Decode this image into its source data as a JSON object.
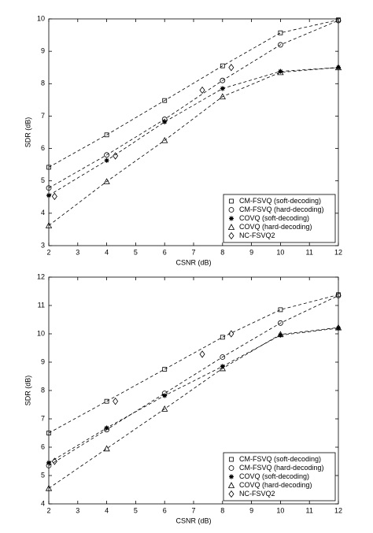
{
  "chart_data": [
    {
      "type": "line",
      "xlabel": "CSNR (dB)",
      "ylabel": "SDR (dB)",
      "xlim": [
        2,
        12
      ],
      "ylim": [
        3,
        10
      ],
      "xticks": [
        2,
        3,
        4,
        5,
        6,
        7,
        8,
        9,
        10,
        11,
        12
      ],
      "yticks": [
        3,
        4,
        5,
        6,
        7,
        8,
        9,
        10
      ],
      "legend": "lower right",
      "series": [
        {
          "name": "CM-FSVQ (soft-decoding)",
          "color": "#000000",
          "marker": "square",
          "linestyle": "dashed",
          "x": [
            2,
            4,
            6,
            8,
            10,
            12
          ],
          "values": [
            5.42,
            6.42,
            7.48,
            8.55,
            9.57,
            9.97
          ]
        },
        {
          "name": "CM-FSVQ (hard-decoding)",
          "color": "#000000",
          "marker": "circle",
          "linestyle": "dashed",
          "x": [
            2,
            4,
            6,
            8,
            10,
            12
          ],
          "values": [
            4.78,
            5.8,
            6.9,
            8.1,
            9.2,
            9.95
          ]
        },
        {
          "name": "COVQ (soft-decoding)",
          "color": "#000000",
          "marker": "star",
          "linestyle": "dashed",
          "x": [
            2,
            4,
            6,
            8,
            10,
            12
          ],
          "values": [
            4.55,
            5.63,
            6.82,
            7.85,
            8.38,
            8.5
          ]
        },
        {
          "name": "COVQ (hard-decoding)",
          "color": "#000000",
          "marker": "triangle",
          "linestyle": "dashed",
          "x": [
            2,
            4,
            6,
            8,
            10,
            12
          ],
          "values": [
            3.62,
            4.98,
            6.25,
            7.6,
            8.35,
            8.5
          ]
        },
        {
          "name": "NC-FSVQ2",
          "color": "#000000",
          "marker": "diamond",
          "linestyle": "none",
          "x": [
            2.2,
            4.3,
            7.3,
            8.3
          ],
          "values": [
            4.52,
            5.77,
            7.8,
            8.5
          ]
        }
      ]
    },
    {
      "type": "line",
      "xlabel": "CSNR (dB)",
      "ylabel": "SDR (dB)",
      "xlim": [
        2,
        12
      ],
      "ylim": [
        4,
        12
      ],
      "xticks": [
        2,
        3,
        4,
        5,
        6,
        7,
        8,
        9,
        10,
        11,
        12
      ],
      "yticks": [
        4,
        5,
        6,
        7,
        8,
        9,
        10,
        11,
        12
      ],
      "legend": "lower right",
      "series": [
        {
          "name": "CM-FSVQ (soft-decoding)",
          "color": "#000000",
          "marker": "square",
          "linestyle": "dashed",
          "x": [
            2,
            4,
            6,
            8,
            10,
            12
          ],
          "values": [
            6.5,
            7.62,
            8.75,
            9.88,
            10.85,
            11.38
          ]
        },
        {
          "name": "CM-FSVQ (hard-decoding)",
          "color": "#000000",
          "marker": "circle",
          "linestyle": "dashed",
          "x": [
            2,
            4,
            6,
            8,
            10,
            12
          ],
          "values": [
            5.35,
            6.62,
            7.9,
            9.18,
            10.38,
            11.35
          ]
        },
        {
          "name": "COVQ (soft-decoding)",
          "color": "#000000",
          "marker": "star",
          "linestyle": "dashed",
          "x": [
            2,
            4,
            6,
            8,
            10,
            12
          ],
          "values": [
            5.45,
            6.68,
            7.82,
            8.85,
            9.95,
            10.2
          ]
        },
        {
          "name": "COVQ (hard-decoding)",
          "color": "#000000",
          "marker": "triangle",
          "linestyle": "dashed",
          "x": [
            2,
            4,
            6,
            8,
            10,
            12
          ],
          "values": [
            4.55,
            5.95,
            7.35,
            8.78,
            9.98,
            10.22
          ]
        },
        {
          "name": "NC-FSVQ2",
          "color": "#000000",
          "marker": "diamond",
          "linestyle": "none",
          "x": [
            2.2,
            4.3,
            7.3,
            8.3
          ],
          "values": [
            5.5,
            7.62,
            9.28,
            10.0
          ]
        }
      ]
    }
  ]
}
